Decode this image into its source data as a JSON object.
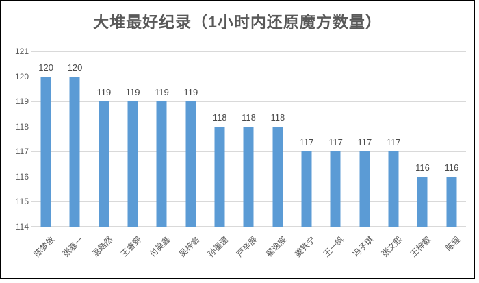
{
  "chart_data": {
    "type": "bar",
    "title": "大堆最好纪录（1小时内还原魔方数量）",
    "categories": [
      "陈梦依",
      "张嘉一",
      "温皓然",
      "王睿野",
      "付昊鑫",
      "吴梓翕",
      "孙墨潼",
      "芦辛展",
      "翟逸宸",
      "姜铁宁",
      "王一帆",
      "冯子琪",
      "张文熙",
      "王梓叡",
      "陈程"
    ],
    "values": [
      120,
      120,
      119,
      119,
      119,
      119,
      118,
      118,
      118,
      117,
      117,
      117,
      117,
      116,
      116
    ],
    "data_labels": [
      120,
      120,
      119,
      119,
      119,
      119,
      118,
      118,
      118,
      117,
      117,
      117,
      117,
      116,
      116
    ],
    "xlabel": "",
    "ylabel": "",
    "ylim": [
      114,
      121
    ],
    "yticks": [
      121,
      120,
      119,
      118,
      117,
      116,
      115,
      114
    ],
    "grid": true,
    "legend_position": "none"
  },
  "colors": {
    "bar": "#5b9bd5",
    "gridline": "#d9d9d9",
    "axis_text": "#595959",
    "value_label_text": "#4a4a4a",
    "title_text": "#595959",
    "frame_border": "#000000",
    "background": "#ffffff"
  }
}
